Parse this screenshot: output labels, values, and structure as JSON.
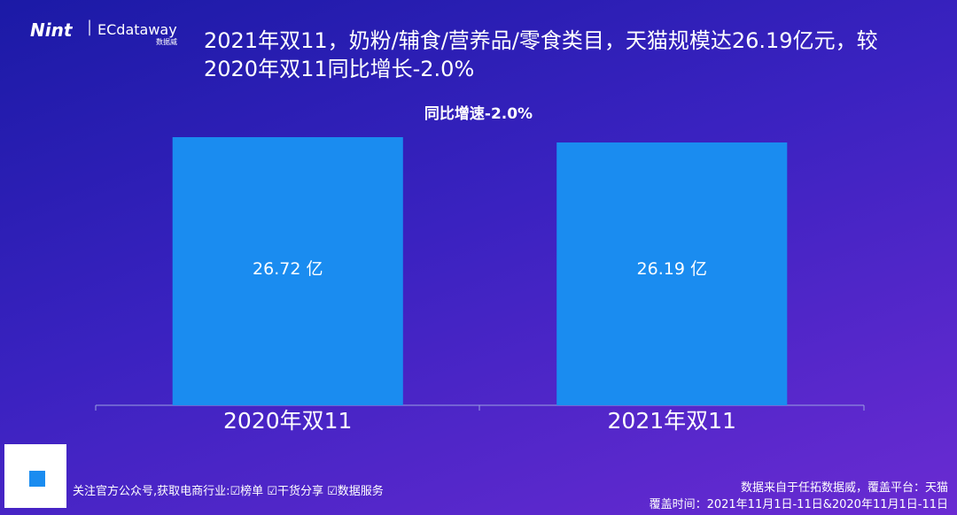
{
  "logo": {
    "brand": "Nint",
    "partner": "ECdataway",
    "partner_sub": "数据威"
  },
  "chart_data": {
    "type": "bar",
    "title_lines": [
      "2021年双11，奶粉/辅食/营养品/零食类目，天猫规模达26.19亿元，较",
      "2020年双11同比增长-2.0%"
    ],
    "subtitle": "同比增速-2.0%",
    "categories": [
      "2020年双11",
      "2021年双11"
    ],
    "values": [
      26.72,
      26.19
    ],
    "value_labels": [
      "26.72 亿",
      "26.19 亿"
    ],
    "color": "#1a8cf0"
  },
  "footer": {
    "left": "关注官方公众号,获取电商行业:☑榜单 ☑干货分享 ☑数据服务",
    "right_lines": [
      "数据来自于任拓数据威，覆盖平台：天猫",
      "覆盖时间：2021年11月1日-11日&2020年11月1日-11日"
    ]
  }
}
